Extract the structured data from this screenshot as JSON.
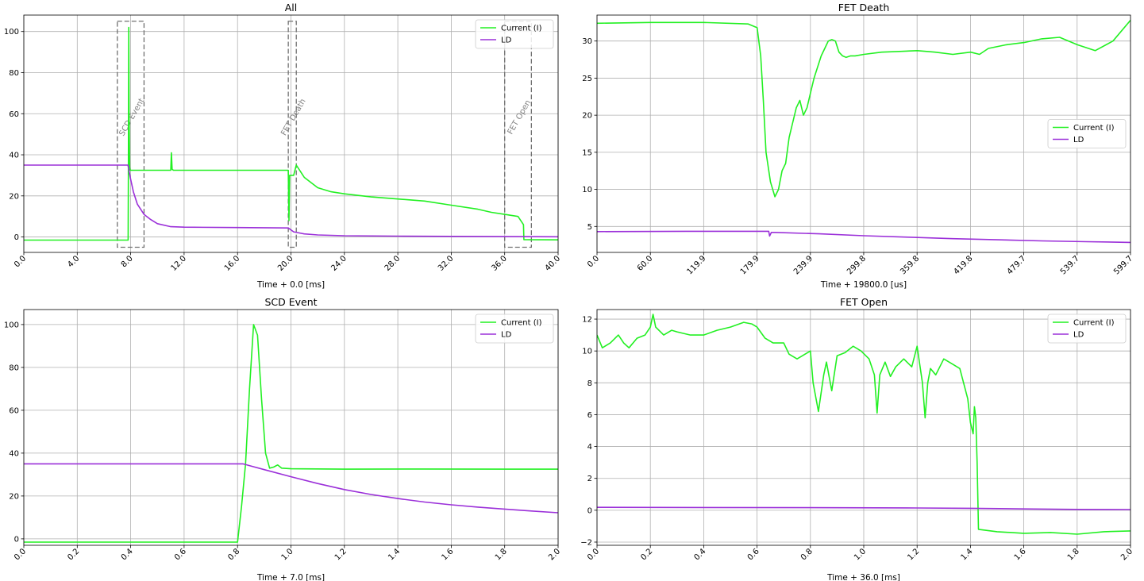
{
  "colors": {
    "current": "#22f022",
    "ld": "#9b30d9",
    "grid": "#b0b0b0",
    "annotation": "#707070"
  },
  "chart_data": [
    {
      "type": "line",
      "title": "All",
      "xlabel": "Time + 0.0 [ms]",
      "ylabel": "",
      "xlim": [
        0,
        40
      ],
      "ylim": [
        -7.5,
        108
      ],
      "xticks": [
        0,
        4,
        8,
        12,
        16,
        20,
        24,
        28,
        32,
        36,
        40
      ],
      "xtick_labels": [
        "0.0",
        "4.0",
        "8.0",
        "12.0",
        "16.0",
        "20.0",
        "24.0",
        "28.0",
        "32.0",
        "36.0",
        "40.0"
      ],
      "yticks": [
        0,
        20,
        40,
        60,
        80,
        100
      ],
      "ytick_labels": [
        "0",
        "20",
        "40",
        "60",
        "80",
        "100"
      ],
      "grid": true,
      "legend": "top-right",
      "annotations": [
        {
          "label": "SCD Event",
          "x": [
            7.0,
            9.0
          ],
          "y": [
            -5,
            105
          ]
        },
        {
          "label": "FET Death",
          "x": [
            19.8,
            20.4
          ],
          "y": [
            -5,
            105
          ]
        },
        {
          "label": "FET Open",
          "x": [
            36.0,
            38.0
          ],
          "y": [
            -5,
            105
          ]
        }
      ],
      "series": [
        {
          "name": "Current (I)",
          "color": "#22f022",
          "x": [
            0,
            7.81,
            7.83,
            7.86,
            7.88,
            7.92,
            7.96,
            8.3,
            11.0,
            11.05,
            11.1,
            11.2,
            19.8,
            19.85,
            19.9,
            20.2,
            20.4,
            21,
            22,
            23,
            24,
            26,
            28,
            30,
            32,
            34,
            35,
            36,
            37,
            37.41,
            37.44,
            40
          ],
          "y": [
            -1.5,
            -1.5,
            30,
            102,
            60,
            34,
            32.5,
            32.5,
            32.5,
            41,
            33,
            32.5,
            32.5,
            8,
            30,
            30,
            35,
            29,
            24,
            22,
            21,
            19.5,
            18.5,
            17.5,
            15.5,
            13.5,
            12,
            11,
            10,
            6,
            -1.3,
            -1.4
          ]
        },
        {
          "name": "LD",
          "color": "#9b30d9",
          "x": [
            0,
            7.8,
            8.0,
            8.2,
            8.5,
            9.0,
            9.5,
            10,
            11,
            12,
            16,
            19.8,
            20.2,
            21,
            22,
            24,
            28,
            32,
            36,
            40
          ],
          "y": [
            35,
            35,
            28,
            22,
            16,
            11,
            8.5,
            6.5,
            5,
            4.8,
            4.6,
            4.4,
            2.5,
            1.5,
            1,
            0.6,
            0.4,
            0.3,
            0.2,
            0.1
          ]
        }
      ]
    },
    {
      "type": "line",
      "title": "FET Death",
      "xlabel": "Time + 19800.0 [us]",
      "ylabel": "",
      "xlim": [
        0,
        599.7
      ],
      "ylim": [
        1.5,
        33.5
      ],
      "xticks": [
        0,
        60,
        119.9,
        179.9,
        239.9,
        299.8,
        359.8,
        419.8,
        479.7,
        539.7,
        599.7
      ],
      "xtick_labels": [
        "0.0",
        "60.0",
        "119.9",
        "179.9",
        "239.9",
        "299.8",
        "359.8",
        "419.8",
        "479.7",
        "539.7",
        "599.7"
      ],
      "yticks": [
        5,
        10,
        15,
        20,
        25,
        30
      ],
      "ytick_labels": [
        "5",
        "10",
        "15",
        "20",
        "25",
        "30"
      ],
      "grid": true,
      "legend": "center-right",
      "series": [
        {
          "name": "Current (I)",
          "color": "#22f022",
          "x": [
            0,
            60,
            120,
            170,
            180,
            184,
            187,
            190,
            195,
            200,
            204,
            208,
            212,
            216,
            220,
            224,
            228,
            232,
            236,
            240,
            244,
            248,
            252,
            256,
            260,
            264,
            268,
            272,
            276,
            280,
            285,
            290,
            300,
            320,
            340,
            360,
            380,
            400,
            420,
            430,
            440,
            460,
            480,
            500,
            520,
            540,
            560,
            580,
            599.7
          ],
          "y": [
            32.4,
            32.5,
            32.5,
            32.3,
            31.8,
            28,
            22,
            15,
            11,
            9,
            10,
            12.5,
            13.5,
            17,
            19,
            21,
            22,
            20,
            21,
            23,
            25,
            26.5,
            28,
            29,
            30,
            30.2,
            30,
            28.5,
            28,
            27.8,
            28,
            28,
            28.2,
            28.5,
            28.6,
            28.7,
            28.5,
            28.2,
            28.5,
            28.2,
            29,
            29.5,
            29.8,
            30.3,
            30.5,
            29.5,
            28.7,
            30,
            32.8
          ]
        },
        {
          "name": "LD",
          "color": "#9b30d9",
          "x": [
            0,
            100,
            180,
            193,
            194,
            196,
            200,
            250,
            300,
            350,
            400,
            450,
            500,
            550,
            599.7
          ],
          "y": [
            4.3,
            4.35,
            4.35,
            4.35,
            3.7,
            4.2,
            4.2,
            4.0,
            3.75,
            3.55,
            3.35,
            3.2,
            3.05,
            2.95,
            2.85
          ]
        }
      ]
    },
    {
      "type": "line",
      "title": "SCD Event",
      "xlabel": "Time + 7.0 [ms]",
      "ylabel": "",
      "xlim": [
        0,
        2.0
      ],
      "ylim": [
        -3,
        107
      ],
      "xticks": [
        0,
        0.2,
        0.4,
        0.6,
        0.8,
        1.0,
        1.2,
        1.4,
        1.6,
        1.8,
        2.0
      ],
      "xtick_labels": [
        "0.0",
        "0.2",
        "0.4",
        "0.6",
        "0.8",
        "1.0",
        "1.2",
        "1.4",
        "1.6",
        "1.8",
        "2.0"
      ],
      "yticks": [
        0,
        20,
        40,
        60,
        80,
        100
      ],
      "ytick_labels": [
        "0",
        "20",
        "40",
        "60",
        "80",
        "100"
      ],
      "grid": true,
      "legend": "top-right",
      "series": [
        {
          "name": "Current (I)",
          "color": "#22f022",
          "x": [
            0,
            0.8,
            0.815,
            0.83,
            0.845,
            0.86,
            0.875,
            0.89,
            0.905,
            0.92,
            0.935,
            0.95,
            0.965,
            1.0,
            1.2,
            1.5,
            2.0
          ],
          "y": [
            -1.5,
            -1.5,
            15,
            35,
            70,
            100,
            95,
            65,
            40,
            33,
            33.5,
            34.5,
            33,
            32.7,
            32.5,
            32.6,
            32.5
          ]
        },
        {
          "name": "LD",
          "color": "#9b30d9",
          "x": [
            0,
            0.82,
            0.85,
            0.9,
            1.0,
            1.1,
            1.2,
            1.3,
            1.4,
            1.5,
            1.6,
            1.7,
            1.8,
            1.9,
            2.0
          ],
          "y": [
            35,
            35,
            34,
            32.3,
            29,
            25.8,
            23,
            20.7,
            18.8,
            17.2,
            15.9,
            14.8,
            13.9,
            13,
            12.2
          ]
        }
      ]
    },
    {
      "type": "line",
      "title": "FET Open",
      "xlabel": "Time + 36.0 [ms]",
      "ylabel": "",
      "xlim": [
        0,
        2.0
      ],
      "ylim": [
        -2.2,
        12.6
      ],
      "xticks": [
        0,
        0.2,
        0.4,
        0.6,
        0.8,
        1.0,
        1.2,
        1.4,
        1.6,
        1.8,
        2.0
      ],
      "xtick_labels": [
        "0.0",
        "0.2",
        "0.4",
        "0.6",
        "0.8",
        "1.0",
        "1.2",
        "1.4",
        "1.6",
        "1.8",
        "2.0"
      ],
      "yticks": [
        -2,
        0,
        2,
        4,
        6,
        8,
        10,
        12
      ],
      "ytick_labels": [
        "−2",
        "0",
        "2",
        "4",
        "6",
        "8",
        "10",
        "12"
      ],
      "grid": true,
      "legend": "top-right",
      "series": [
        {
          "name": "Current (I)",
          "color": "#22f022",
          "x": [
            0,
            0.02,
            0.05,
            0.08,
            0.1,
            0.12,
            0.15,
            0.18,
            0.2,
            0.21,
            0.22,
            0.25,
            0.28,
            0.3,
            0.35,
            0.4,
            0.45,
            0.5,
            0.55,
            0.58,
            0.6,
            0.63,
            0.66,
            0.7,
            0.72,
            0.75,
            0.8,
            0.81,
            0.83,
            0.85,
            0.86,
            0.88,
            0.9,
            0.93,
            0.96,
            0.99,
            1.02,
            1.04,
            1.05,
            1.06,
            1.08,
            1.1,
            1.12,
            1.15,
            1.18,
            1.2,
            1.22,
            1.23,
            1.24,
            1.25,
            1.27,
            1.3,
            1.33,
            1.36,
            1.39,
            1.4,
            1.41,
            1.415,
            1.42,
            1.425,
            1.43,
            1.5,
            1.6,
            1.7,
            1.8,
            1.9,
            2.0
          ],
          "y": [
            11,
            10.2,
            10.5,
            11,
            10.5,
            10.2,
            10.8,
            11,
            11.5,
            12.3,
            11.5,
            11,
            11.3,
            11.2,
            11,
            11,
            11.3,
            11.5,
            11.8,
            11.7,
            11.5,
            10.8,
            10.5,
            10.5,
            9.8,
            9.5,
            10,
            8,
            6.2,
            8.5,
            9.3,
            7.5,
            9.7,
            9.9,
            10.3,
            10,
            9.5,
            8.5,
            6.1,
            8.5,
            9.3,
            8.4,
            9,
            9.5,
            9,
            10.3,
            8,
            5.8,
            8,
            8.9,
            8.5,
            9.5,
            9.2,
            8.9,
            7,
            5.5,
            4.8,
            6.5,
            5.8,
            3,
            -1.2,
            -1.35,
            -1.45,
            -1.4,
            -1.5,
            -1.35,
            -1.3
          ]
        },
        {
          "name": "LD",
          "color": "#9b30d9",
          "x": [
            0,
            0.4,
            0.8,
            1.2,
            1.4,
            1.6,
            1.8,
            2.0
          ],
          "y": [
            0.18,
            0.17,
            0.16,
            0.14,
            0.12,
            0.08,
            0.05,
            0.04
          ]
        }
      ]
    }
  ]
}
